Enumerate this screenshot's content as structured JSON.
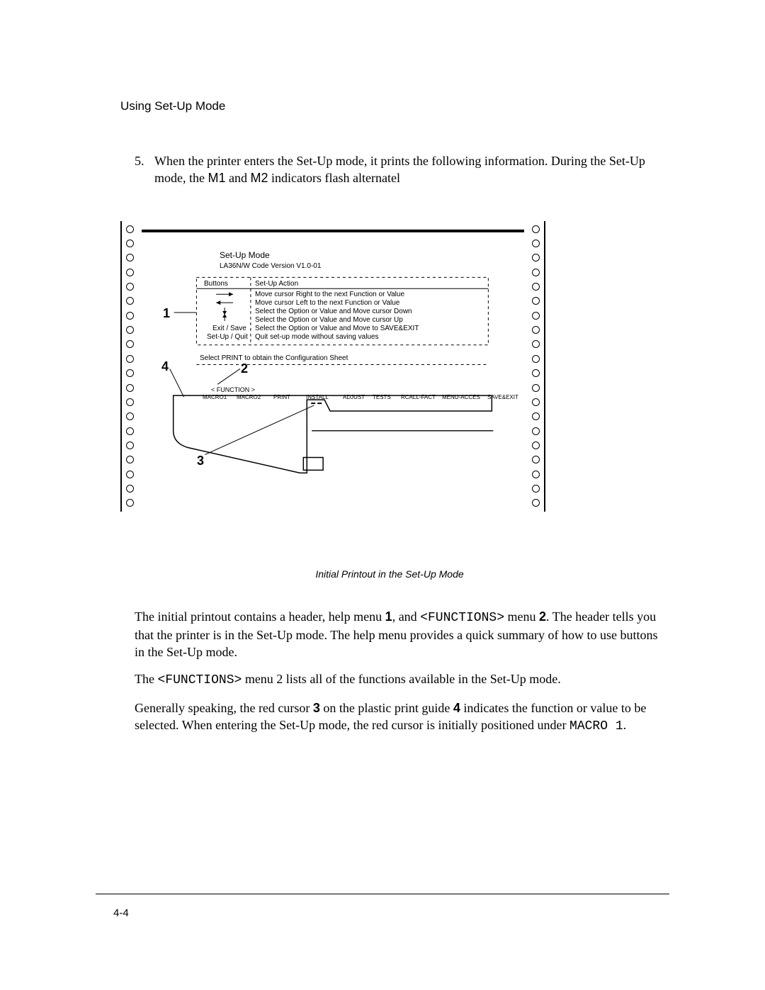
{
  "header": "Using Set-Up Mode",
  "intro_num": "5.",
  "intro_text_a": "When the printer enters the Set-Up mode, it prints the following information.  During the Set-Up mode, the ",
  "intro_m1": "M1",
  "intro_and": " and ",
  "intro_m2": "M2",
  "intro_text_b": " indicators flash alternatel",
  "diagram": {
    "hole_count": 20,
    "title": "Set-Up Mode",
    "version": "LA36N/W Code Version V1.0-01",
    "col_buttons": "Buttons",
    "col_action": "Set-Up Action",
    "actions": [
      "Move cursor Right to the next Function or Value",
      "Move cursor Left to the next Function or Value",
      "Select the Option or Value and Move cursor Down",
      "Select the Option or Value and Move cursor Up",
      "Select the Option or Value and Move to SAVE&EXIT",
      "Quit set-up mode without saving values"
    ],
    "btn_exit": "Exit / Save",
    "btn_quit": "Set-Up / Quit",
    "select_print": "Select PRINT to obtain the Configuration Sheet",
    "func_label": "< FUNCTION >",
    "funcs": [
      "MACRO1",
      "MACRO2",
      "PRINT",
      "INSTALL",
      "ADJUST",
      "TESTS",
      "RCALL-FACT",
      "MENU-ACCES",
      "SAVE&EXIT"
    ],
    "callout1": "1",
    "callout2": "2",
    "callout3": "3",
    "callout4": "4"
  },
  "caption": "Initial Printout in the Set-Up Mode",
  "p1a": "The initial printout contains a header, help menu ",
  "p1b": ", and ",
  "p1c": "<FUNCTIONS>",
  "p1d": " menu ",
  "p1e": ". The header tells you that the printer is in the Set-Up mode.  The help menu provides a quick summary of how to use buttons in the Set-Up mode.",
  "p2a": "The ",
  "p2b": "<FUNCTIONS>",
  "p2c": " menu 2 lists all of the functions available in the Set-Up mode.",
  "p3a": "Generally speaking, the red cursor ",
  "p3b": " on the plastic print guide ",
  "p3c": " indicates the function or value to be selected.  When entering the Set-Up mode, the red cursor is initially positioned under ",
  "p3d": "MACRO 1",
  "p3e": ".",
  "b1": "1",
  "b2": "2",
  "b3": "3",
  "b4": "4",
  "pagenum": "4-4"
}
